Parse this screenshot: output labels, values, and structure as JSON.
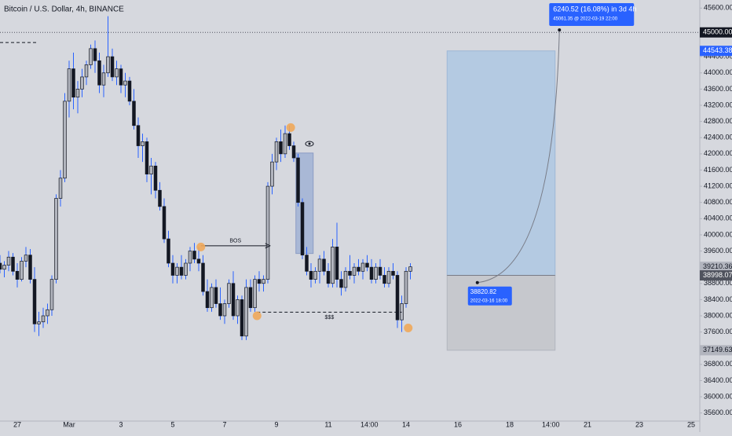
{
  "chart_data": {
    "type": "candlestick",
    "title": "Bitcoin / U.S. Dollar, 4h, BINANCE",
    "colors": {
      "up": "#b2b5be",
      "down": "#131722",
      "wick": "#2962ff",
      "border": "#131722"
    },
    "open": [
      39300,
      39150,
      39250,
      39450,
      39100,
      38900,
      39350,
      39500,
      38900,
      37800,
      37850,
      38000,
      38150,
      38900,
      40900,
      41400,
      43300,
      44100,
      43400,
      43600,
      43900,
      44200,
      44600,
      44300,
      43700,
      44000,
      44400,
      43900,
      44100,
      43700,
      43800,
      43300,
      42700,
      42200,
      42300,
      41500,
      41700,
      41100,
      40700,
      39900,
      39300,
      39000,
      39200,
      39000,
      39300,
      39600,
      39400,
      39300,
      38600,
      38200,
      38700,
      38300,
      38000,
      38300,
      38800,
      38000,
      38400,
      37500,
      38700,
      38200,
      38900,
      38800,
      38900,
      41200,
      41800,
      42300,
      42000,
      42500,
      42200,
      41900,
      40800,
      39500,
      39100,
      38900,
      39100,
      39400,
      39100,
      38800,
      39700,
      38900,
      38700,
      39100,
      39000,
      39200,
      39100,
      39300,
      39200,
      38900,
      39200,
      39000,
      38800,
      39100,
      39000,
      37900,
      38300,
      39100
    ],
    "high": [
      39500,
      39350,
      39600,
      39550,
      39300,
      39450,
      39700,
      39650,
      39200,
      38100,
      38200,
      38300,
      39000,
      41000,
      41600,
      43500,
      44300,
      44500,
      43800,
      44100,
      44300,
      44700,
      44800,
      44500,
      44200,
      45400,
      44600,
      44300,
      44200,
      44000,
      43900,
      43600,
      42900,
      42500,
      42400,
      41900,
      41800,
      41300,
      40900,
      40100,
      39500,
      39300,
      39500,
      39400,
      39700,
      39800,
      39700,
      39500,
      38900,
      38800,
      38900,
      38700,
      38400,
      38900,
      39100,
      38500,
      38500,
      38900,
      38900,
      39000,
      39100,
      39000,
      41300,
      42000,
      42400,
      42600,
      42700,
      42700,
      42300,
      42000,
      40900,
      39700,
      39300,
      39200,
      39500,
      39600,
      39300,
      39900,
      40300,
      39100,
      39200,
      39500,
      39300,
      39400,
      39400,
      39500,
      39400,
      39300,
      39400,
      39200,
      39200,
      39300,
      39100,
      38500,
      39200,
      39300
    ],
    "low": [
      39050,
      38950,
      39100,
      39000,
      38700,
      38850,
      39200,
      38800,
      37600,
      37500,
      37700,
      37800,
      38000,
      38800,
      40700,
      41300,
      42900,
      43100,
      43000,
      43400,
      43700,
      44100,
      44000,
      43500,
      43400,
      43900,
      43800,
      43700,
      43500,
      43400,
      43200,
      42600,
      41900,
      41800,
      41300,
      41000,
      40900,
      40600,
      39800,
      39200,
      38800,
      38800,
      38900,
      38900,
      39100,
      39300,
      39100,
      38500,
      38100,
      38100,
      38200,
      37900,
      37800,
      38200,
      37900,
      37800,
      37400,
      37400,
      38100,
      38100,
      38600,
      38600,
      38800,
      41000,
      41600,
      41800,
      41900,
      42100,
      41800,
      40700,
      39400,
      39000,
      38700,
      38800,
      38800,
      39000,
      38700,
      38700,
      38700,
      38500,
      38600,
      38900,
      38800,
      39000,
      38900,
      39100,
      38800,
      38800,
      38900,
      38700,
      38700,
      38900,
      37700,
      37600,
      38200,
      38900
    ],
    "close": [
      39150,
      39250,
      39450,
      39100,
      38900,
      39350,
      39500,
      38900,
      37800,
      37850,
      38000,
      38150,
      38900,
      40900,
      41400,
      43300,
      44100,
      43400,
      43600,
      43900,
      44200,
      44600,
      44300,
      43700,
      44000,
      44400,
      43900,
      44100,
      43700,
      43800,
      43300,
      42700,
      42200,
      42300,
      41500,
      41700,
      41100,
      40700,
      39900,
      39300,
      39000,
      39200,
      39000,
      39300,
      39600,
      39400,
      39300,
      38600,
      38200,
      38700,
      38300,
      38000,
      38300,
      38800,
      38000,
      38400,
      37500,
      38700,
      38200,
      38900,
      38800,
      38900,
      41200,
      41800,
      42300,
      42000,
      42500,
      42200,
      41900,
      40800,
      39500,
      39100,
      38900,
      39100,
      39400,
      39100,
      38800,
      39700,
      38900,
      38700,
      39100,
      39000,
      39200,
      39100,
      39300,
      39200,
      38900,
      39200,
      39000,
      38800,
      39100,
      39000,
      37900,
      38300,
      39100,
      39210
    ],
    "xlim": [
      0,
      162
    ],
    "xticks": [
      {
        "value": 4,
        "label": "27"
      },
      {
        "value": 16,
        "label": "Mar"
      },
      {
        "value": 28,
        "label": "3"
      },
      {
        "value": 40,
        "label": "5"
      },
      {
        "value": 52,
        "label": "7"
      },
      {
        "value": 64,
        "label": "9"
      },
      {
        "value": 76,
        "label": "11"
      },
      {
        "value": 85.5,
        "label": "14:00"
      },
      {
        "value": 94,
        "label": "14"
      },
      {
        "value": 106,
        "label": "16"
      },
      {
        "value": 118,
        "label": "18"
      },
      {
        "value": 127.5,
        "label": "14:00"
      },
      {
        "value": 136,
        "label": "21"
      },
      {
        "value": 148,
        "label": "23"
      },
      {
        "value": 160,
        "label": "25"
      }
    ],
    "ylim": [
      35400,
      45800
    ],
    "yticks": [
      {
        "value": 35600,
        "label": "35600.00"
      },
      {
        "value": 36000,
        "label": "36000.00"
      },
      {
        "value": 36400,
        "label": "36400.00"
      },
      {
        "value": 36800,
        "label": "36800.00"
      },
      {
        "value": 37600,
        "label": "37600.00"
      },
      {
        "value": 38000,
        "label": "38000.00"
      },
      {
        "value": 38400,
        "label": "38400.00"
      },
      {
        "value": 38800,
        "label": "38800.00"
      },
      {
        "value": 39600,
        "label": "39600.00"
      },
      {
        "value": 40000,
        "label": "40000.00"
      },
      {
        "value": 40400,
        "label": "40400.00"
      },
      {
        "value": 40800,
        "label": "40800.00"
      },
      {
        "value": 41200,
        "label": "41200.00"
      },
      {
        "value": 41600,
        "label": "41600.00"
      },
      {
        "value": 42000,
        "label": "42000.00"
      },
      {
        "value": 42400,
        "label": "42400.00"
      },
      {
        "value": 42800,
        "label": "42800.00"
      },
      {
        "value": 43200,
        "label": "43200.00"
      },
      {
        "value": 43600,
        "label": "43600.00"
      },
      {
        "value": 44000,
        "label": "44000.00"
      },
      {
        "value": 44400,
        "label": "44400.00"
      },
      {
        "value": 45600,
        "label": "45600.00"
      }
    ],
    "price_labels": [
      {
        "value": 45000,
        "label": "45000.00",
        "color": "#131722",
        "text_color": "#ffffff"
      },
      {
        "value": 44543.38,
        "label": "44543.38",
        "color": "#2962ff",
        "text_color": "#ffffff"
      },
      {
        "value": 39210.36,
        "label": "39210.36",
        "color": "#b2b5be",
        "text_color": "#131722"
      },
      {
        "value": 38998.07,
        "label": "38998.07",
        "color": "#50535e",
        "text_color": "#ffffff"
      },
      {
        "value": 37149.63,
        "label": "37149.63",
        "color": "#b2b5be",
        "text_color": "#131722"
      }
    ],
    "level_line": 45000,
    "position": {
      "start": 103.5,
      "end": 128.5,
      "target": 44543.38,
      "entry": 38998.07,
      "stop": 37149.63
    },
    "projection": {
      "from": {
        "at": 110.5,
        "value": 38820.82,
        "label": "38820.82",
        "time": "2022-03-16 18:00"
      },
      "to": {
        "at": 129.5,
        "value": 45061.35,
        "label": "6240.52 (16.08%) in 3d 4h",
        "detail": "45061.35 @ 2022-03-19  22:00"
      }
    },
    "bos": {
      "label": "BOS",
      "value": 39730,
      "from": 46.5,
      "to": 62.5
    },
    "liquidity": {
      "label": "$$$",
      "value": 38090,
      "from": 59.5,
      "to": 93
    },
    "old_level": {
      "value": 44750,
      "from": 0,
      "to": 8.5
    },
    "zone": {
      "from": 68.5,
      "to": 72.5,
      "top": 42020,
      "bottom": 39540
    },
    "points": [
      {
        "at": 46.5,
        "value": 39700
      },
      {
        "at": 67.3,
        "value": 42650
      },
      {
        "at": 59.5,
        "value": 38000
      },
      {
        "at": 94.5,
        "value": 37700
      }
    ]
  }
}
